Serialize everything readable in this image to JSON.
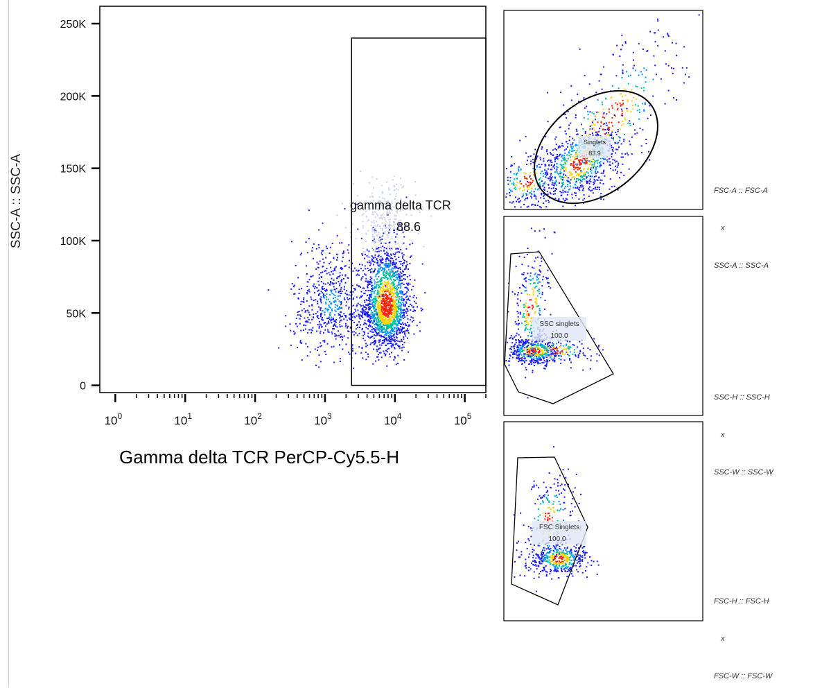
{
  "chart_data": [
    {
      "type": "scatter",
      "style": "pseudocolor density dot plot",
      "xlabel": "Gamma delta TCR PerCP-Cy5.5-H",
      "ylabel": "SSC-A :: SSC-A",
      "xscale": "log",
      "xlim": [
        0.6,
        200000
      ],
      "ylim": [
        -5000,
        262000
      ],
      "x_ticks": [
        "10^0",
        "10^1",
        "10^2",
        "10^3",
        "10^4",
        "10^5"
      ],
      "x_tick_bases": [
        "10",
        "10",
        "10",
        "10",
        "10",
        "10"
      ],
      "x_tick_exps": [
        "0",
        "1",
        "2",
        "3",
        "4",
        "5"
      ],
      "y_ticks": [
        "0",
        "50K",
        "100K",
        "150K",
        "200K",
        "250K"
      ],
      "y_tick_values": [
        0,
        50000,
        100000,
        150000,
        200000,
        250000
      ],
      "gate": {
        "shape": "rectangle",
        "name": "gamma delta TCR",
        "percent": "88.6",
        "x_range": [
          2400,
          200000
        ],
        "y_range": [
          0,
          240000
        ]
      },
      "populations": [
        {
          "name": "gated",
          "center_x": 7500,
          "center_y": 55000,
          "spread_log_x": 0.17,
          "spread_y": 20000,
          "count": 1800
        },
        {
          "name": "ungated",
          "center_x": 1200,
          "center_y": 55000,
          "spread_log_x": 0.28,
          "spread_y": 22000,
          "count": 600
        }
      ],
      "grid": false
    },
    {
      "type": "scatter",
      "style": "pseudocolor density dot plot",
      "x_param": "FSC-A :: FSC-A",
      "y_param": "SSC-A :: SSC-A",
      "gate": {
        "shape": "ellipse",
        "name": "Singlets",
        "percent": "83.9"
      },
      "grid": false
    },
    {
      "type": "scatter",
      "style": "pseudocolor density dot plot",
      "x_param": "SSC-W :: SSC-W",
      "y_param": "SSC-H :: SSC-H",
      "gate": {
        "shape": "polygon",
        "name": "SSC singlets",
        "percent": "100.0"
      },
      "grid": false
    },
    {
      "type": "scatter",
      "style": "pseudocolor density dot plot",
      "x_param": "FSC-W :: FSC-W",
      "y_param": "FSC-H :: FSC-H",
      "gate": {
        "shape": "polygon",
        "name": "FSC Singlets",
        "percent": "100.0"
      },
      "grid": false
    }
  ],
  "side_notes": [
    {
      "line1": "FSC-A :: FSC-A",
      "line2": "x",
      "line3": "SSC-A :: SSC-A"
    },
    {
      "line1": "SSC-H :: SSC-H",
      "line2": "x",
      "line3": "SSC-W :: SSC-W"
    },
    {
      "line1": "FSC-H :: FSC-H",
      "line2": "x",
      "line3": "FSC-W :: FSC-W"
    }
  ],
  "colors": {
    "frame": "#000000",
    "density_low": "#1a1aff",
    "density_mid": "#00c0a0",
    "density_high": "#ffd000",
    "density_peak": "#ff2000",
    "gate_label_bg": "#dfe6f5"
  }
}
